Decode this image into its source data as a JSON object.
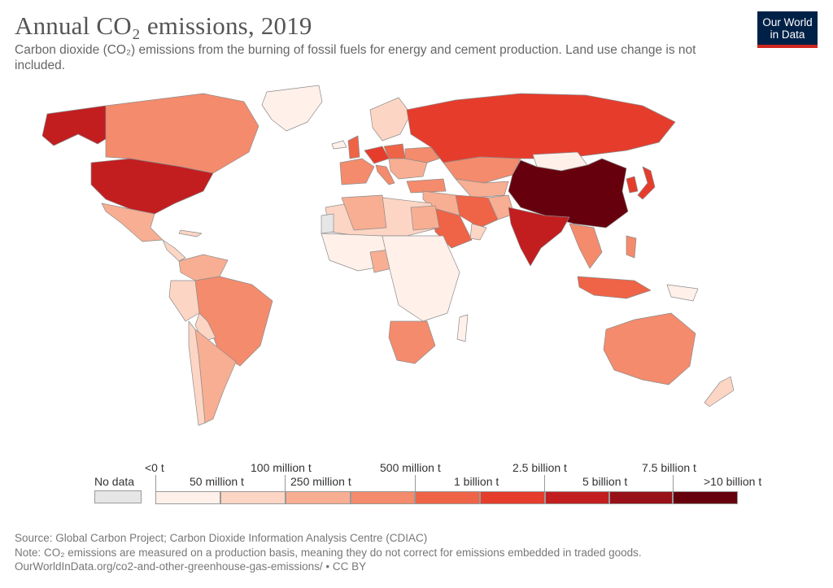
{
  "title": "Annual CO₂ emissions, 2019",
  "subtitle": "Carbon dioxide (CO₂) emissions from the burning of fossil fuels for energy and cement production. Land use change is not included.",
  "logo": {
    "line1": "Our World",
    "line2": "in Data"
  },
  "legend": {
    "no_data": "No data",
    "colors": {
      "no_data": "#e6e6e6",
      "bins": [
        "#fff0ea",
        "#fcd5c4",
        "#f8ae92",
        "#f48b6c",
        "#ef6347",
        "#e63c2c",
        "#c21e20",
        "#981018",
        "#67000d"
      ]
    },
    "labels_top": [
      "<0 t",
      "100 million t",
      "500 million t",
      "2.5 billion t",
      "7.5 billion t"
    ],
    "labels_bottom": [
      "50 million t",
      "250 million t",
      "1 billion t",
      "5 billion t",
      ">10 billion t"
    ]
  },
  "footer": {
    "source": "Source: Global Carbon Project; Carbon Dioxide Information Analysis Centre (CDIAC)",
    "note": "Note: CO₂ emissions are measured on a production basis, meaning they do not correct for emissions embedded in traded goods.",
    "url": "OurWorldInData.org/co2-and-other-greenhouse-gas-emissions/ • CC BY"
  }
}
